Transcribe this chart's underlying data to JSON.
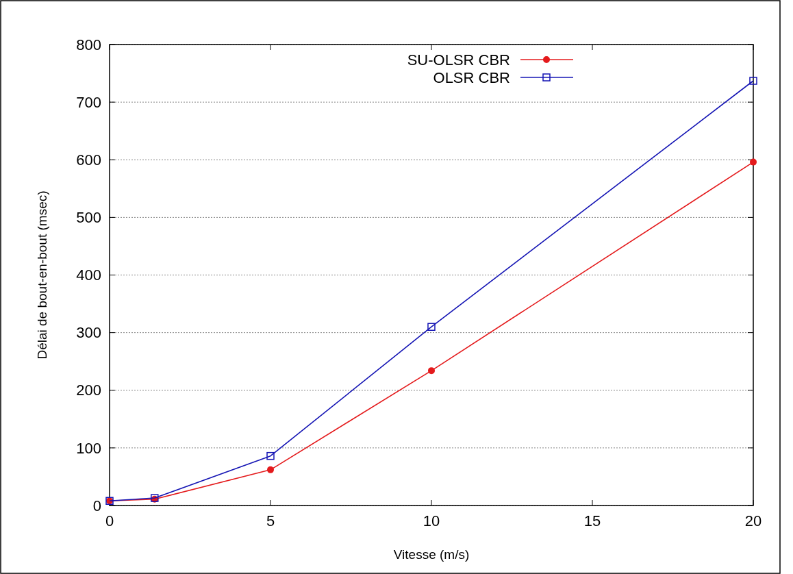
{
  "chart_data": {
    "type": "line",
    "xlabel": "Vitesse (m/s)",
    "ylabel": "Délai de bout-en-bout (msec)",
    "x": [
      0,
      1.4,
      5,
      10,
      20
    ],
    "series": [
      {
        "name": "SU-OLSR CBR",
        "color": "#e41a1c",
        "marker": "circle",
        "values": [
          8,
          11,
          62,
          234,
          596
        ]
      },
      {
        "name": "OLSR CBR",
        "color": "#1414b4",
        "marker": "square",
        "values": [
          8,
          13,
          86,
          310,
          737
        ]
      }
    ],
    "xlim": [
      0,
      20
    ],
    "xticks": [
      0,
      5,
      10,
      15,
      20
    ],
    "ylim": [
      0,
      800
    ],
    "yticks": [
      0,
      100,
      200,
      300,
      400,
      500,
      600,
      700,
      800
    ],
    "grid": "y",
    "legend": "top",
    "line_style": "solid"
  }
}
